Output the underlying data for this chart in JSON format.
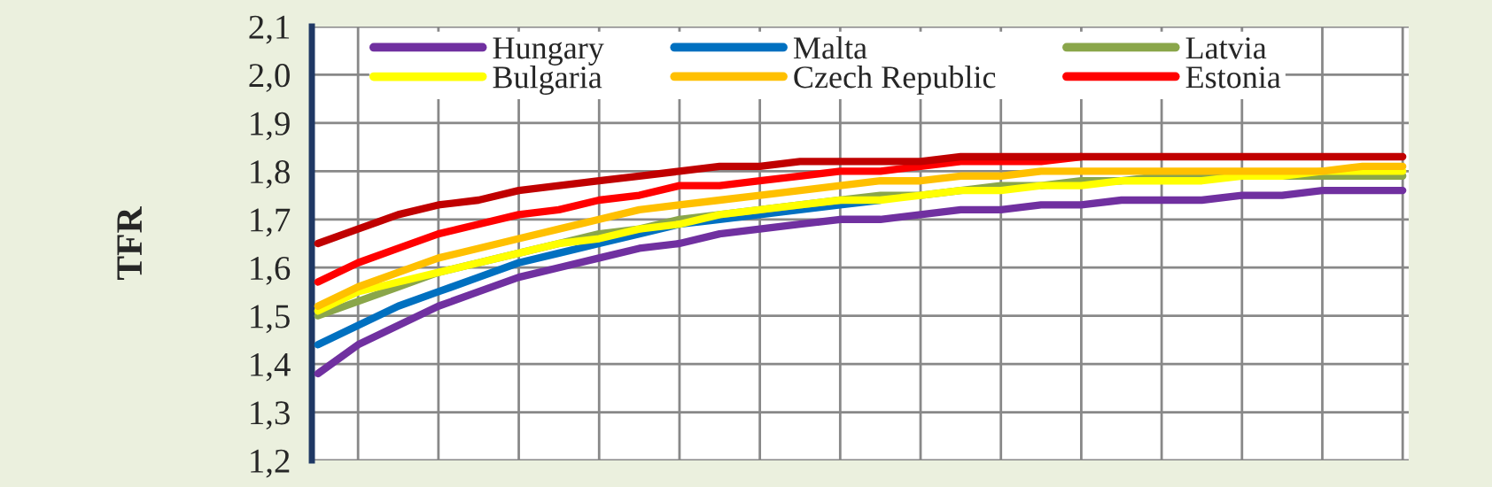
{
  "chart_data": {
    "type": "line",
    "ylabel": "TFR",
    "categories": [
      null,
      null,
      null,
      null,
      null,
      null,
      null,
      null,
      null,
      null,
      null,
      null,
      null,
      null,
      null,
      null,
      null,
      null,
      null,
      null,
      null,
      null,
      null,
      null,
      null,
      null,
      null,
      null
    ],
    "series": [
      {
        "name": "Hungary",
        "color": "#7030a0",
        "values": [
          1.38,
          1.44,
          1.48,
          1.52,
          1.55,
          1.58,
          1.6,
          1.62,
          1.64,
          1.65,
          1.67,
          1.68,
          1.69,
          1.7,
          1.7,
          1.71,
          1.72,
          1.72,
          1.73,
          1.73,
          1.74,
          1.74,
          1.74,
          1.75,
          1.75,
          1.76,
          1.76,
          1.76
        ]
      },
      {
        "name": "Malta",
        "color": "#0070c0",
        "values": [
          1.44,
          1.48,
          1.52,
          1.55,
          1.58,
          1.61,
          1.63,
          1.65,
          1.67,
          1.69,
          1.7,
          1.71,
          1.72,
          1.73,
          1.74,
          null,
          null,
          null,
          null,
          null,
          null,
          null,
          null,
          null,
          null,
          null,
          null,
          null
        ]
      },
      {
        "name": "Latvia",
        "color": "#8aa64a",
        "values": [
          1.5,
          1.53,
          1.56,
          1.59,
          1.61,
          1.63,
          1.65,
          1.67,
          1.68,
          1.7,
          1.71,
          1.72,
          1.73,
          1.74,
          1.75,
          1.75,
          1.76,
          1.77,
          1.77,
          1.78,
          1.78,
          1.79,
          1.79,
          1.79,
          1.79,
          1.79,
          1.79,
          1.79
        ]
      },
      {
        "name": "Bulgaria",
        "color": "#ffff00",
        "values": [
          1.51,
          1.55,
          1.57,
          1.59,
          1.61,
          1.63,
          1.65,
          1.66,
          1.68,
          1.69,
          1.71,
          1.72,
          1.73,
          1.74,
          1.74,
          1.75,
          1.76,
          1.76,
          1.77,
          1.77,
          1.78,
          1.78,
          1.78,
          1.79,
          1.79,
          1.8,
          1.8,
          1.8
        ]
      },
      {
        "name": "Czech Republic",
        "color": "#ffc000",
        "values": [
          1.52,
          1.56,
          1.59,
          1.62,
          1.64,
          1.66,
          1.68,
          1.7,
          1.72,
          1.73,
          1.74,
          1.75,
          1.76,
          1.77,
          1.78,
          1.78,
          1.79,
          1.79,
          1.8,
          1.8,
          1.8,
          1.8,
          1.8,
          1.8,
          1.8,
          1.8,
          1.81,
          1.81
        ]
      },
      {
        "name": "Estonia",
        "color": "#ff0000",
        "values": [
          1.57,
          1.61,
          1.64,
          1.67,
          1.69,
          1.71,
          1.72,
          1.74,
          1.75,
          1.77,
          1.77,
          1.78,
          1.79,
          1.8,
          1.8,
          1.81,
          1.82,
          1.82,
          1.82,
          1.83,
          null,
          null,
          null,
          null,
          null,
          null,
          null,
          null
        ]
      },
      {
        "color": "#c00000",
        "values": [
          1.65,
          1.68,
          1.71,
          1.73,
          1.74,
          1.76,
          1.77,
          1.78,
          1.79,
          1.8,
          1.81,
          1.81,
          1.82,
          1.82,
          1.82,
          1.82,
          1.83,
          1.83,
          1.83,
          1.83,
          1.83,
          1.83,
          1.83,
          1.83,
          1.83,
          1.83,
          1.83,
          1.83
        ]
      }
    ],
    "ylim": [
      1.2,
      2.1
    ],
    "yticks": [
      {
        "value": 1.2,
        "label": "1,2"
      },
      {
        "value": 1.3,
        "label": "1,3"
      },
      {
        "value": 1.4,
        "label": "1,4"
      },
      {
        "value": 1.5,
        "label": "1,5"
      },
      {
        "value": 1.6,
        "label": "1,6"
      },
      {
        "value": 1.7,
        "label": "1,7"
      },
      {
        "value": 1.8,
        "label": "1,8"
      },
      {
        "value": 1.9,
        "label": "1,9"
      },
      {
        "value": 2.0,
        "label": "2,0"
      },
      {
        "value": 2.1,
        "label": "2,1"
      }
    ],
    "grid": true,
    "legend": "top",
    "tick_labels": "y",
    "marker": "none",
    "line_style": "solid"
  }
}
